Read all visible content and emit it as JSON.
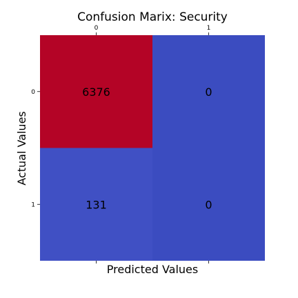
{
  "chart_data": {
    "type": "heatmap",
    "title": "Confusion Marix: Security",
    "xlabel": "Predicted Values",
    "ylabel": "Actual Values",
    "x_categories": [
      "0",
      "1"
    ],
    "y_categories": [
      "0",
      "1"
    ],
    "values": [
      [
        6376,
        0
      ],
      [
        131,
        0
      ]
    ],
    "x_ticks_position": "top",
    "colormap": "coolwarm",
    "colors": {
      "high": "#b40426",
      "low": "#3b4cc0",
      "low_alt": "#3e52c7"
    },
    "grid": false
  }
}
